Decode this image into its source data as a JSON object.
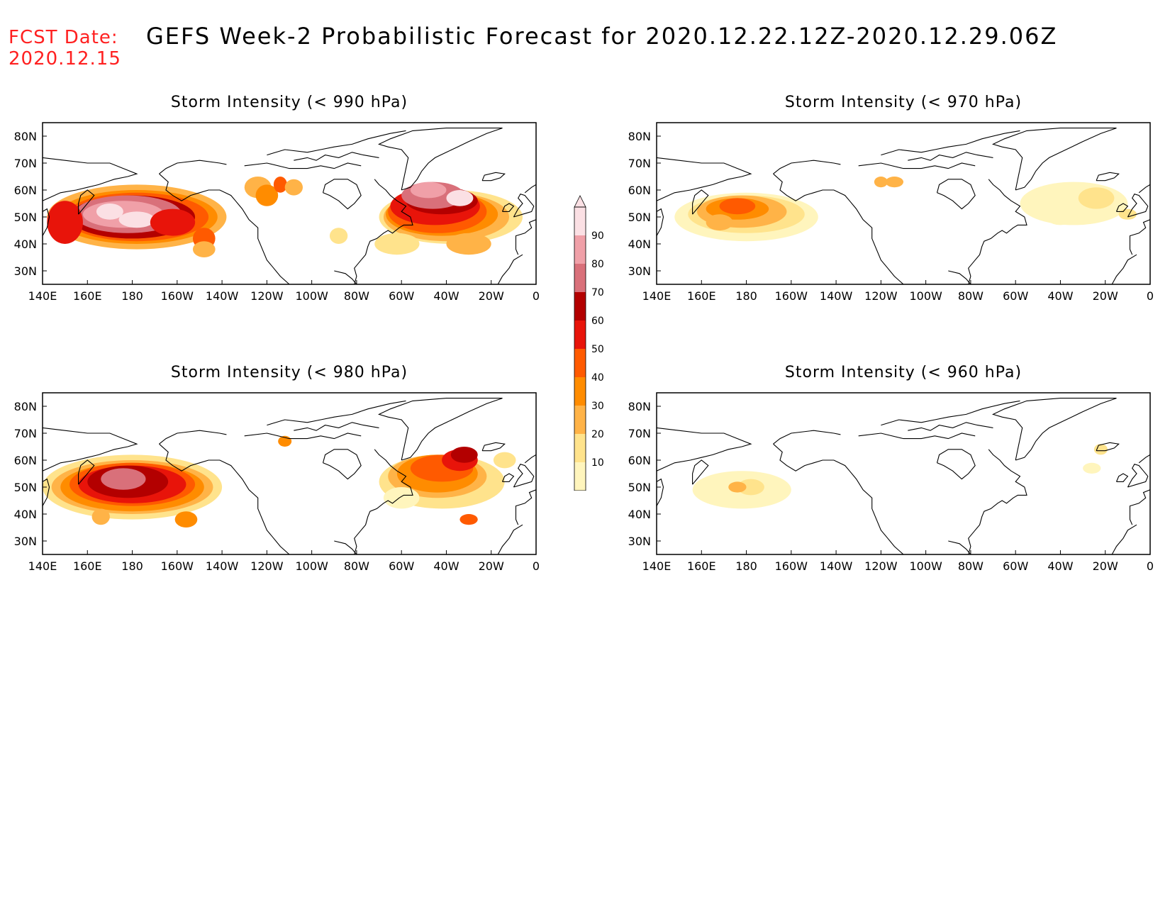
{
  "header": {
    "fcst_label": "FCST Date:",
    "fcst_date": "2020.12.15",
    "title": "GEFS Week-2 Probabilistic Forecast for 2020.12.22.12Z-2020.12.29.06Z"
  },
  "axes": {
    "lon_labels": [
      "140E",
      "160E",
      "180",
      "160W",
      "140W",
      "120W",
      "100W",
      "80W",
      "60W",
      "40W",
      "20W",
      "0"
    ],
    "lat_labels": [
      "80N",
      "70N",
      "60N",
      "50N",
      "40N",
      "30N"
    ]
  },
  "panels": [
    {
      "id": "p990",
      "title": "Storm Intensity (< 990 hPa)"
    },
    {
      "id": "p970",
      "title": "Storm Intensity (< 970 hPa)"
    },
    {
      "id": "p980",
      "title": "Storm Intensity (< 980 hPa)"
    },
    {
      "id": "p960",
      "title": "Storm Intensity (< 960 hPa)"
    }
  ],
  "colorbar": {
    "levels": [
      "10",
      "20",
      "30",
      "40",
      "50",
      "60",
      "70",
      "80",
      "90"
    ],
    "colors": [
      "#fff5bd",
      "#ffe38c",
      "#ffb347",
      "#ff8c00",
      "#ff5a00",
      "#e8140a",
      "#b30000",
      "#d9707a",
      "#f0a0a8",
      "#fbe0e4"
    ]
  }
}
